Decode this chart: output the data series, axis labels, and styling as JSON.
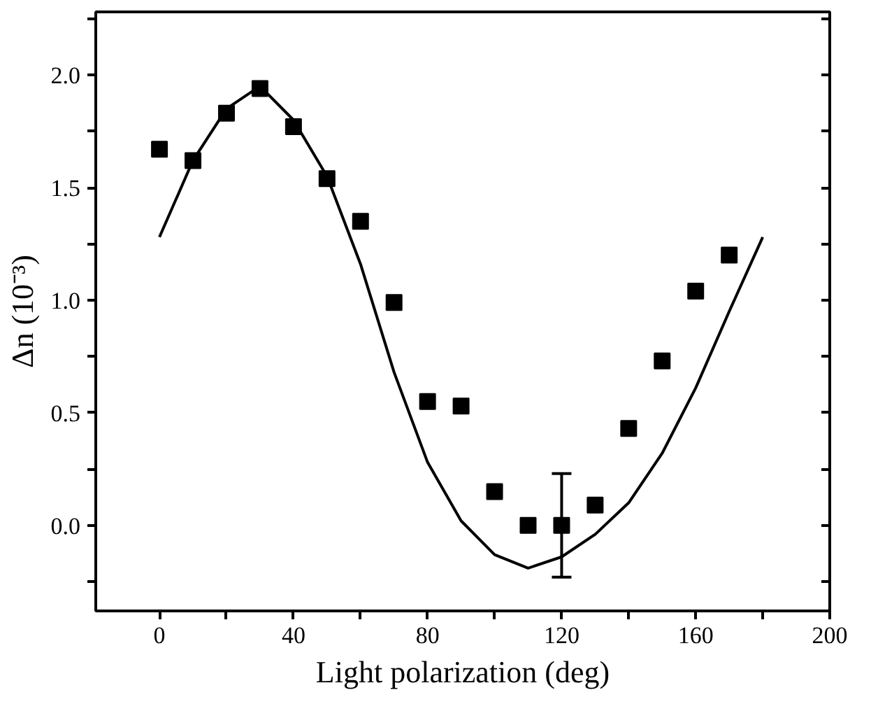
{
  "chart_data": {
    "type": "scatter",
    "xlabel": "Light polarization (deg)",
    "ylabel": "Δn (10⁻³)",
    "x": [
      0,
      10,
      20,
      30,
      40,
      50,
      60,
      70,
      80,
      90,
      100,
      110,
      120,
      130,
      140,
      150,
      160,
      170
    ],
    "series": [
      {
        "color": "#000000",
        "marker": "square",
        "values": [
          1.67,
          1.62,
          1.83,
          1.94,
          1.77,
          1.54,
          1.35,
          0.99,
          0.55,
          0.53,
          0.15,
          0.0,
          0.0,
          0.09,
          0.43,
          0.73,
          1.04,
          1.2
        ],
        "errors": [
          null,
          null,
          null,
          null,
          null,
          null,
          null,
          null,
          null,
          null,
          null,
          null,
          0.23,
          null,
          null,
          null,
          null,
          null
        ]
      },
      {
        "type": "line",
        "color": "#000000",
        "marker": "none",
        "line_style": "solid",
        "x": [
          0,
          10,
          20,
          30,
          40,
          50,
          60,
          70,
          80,
          90,
          100,
          110,
          120,
          130,
          140,
          150,
          160,
          170,
          180
        ],
        "values": [
          1.28,
          1.62,
          1.85,
          1.95,
          1.8,
          1.55,
          1.16,
          0.68,
          0.28,
          0.02,
          -0.13,
          -0.19,
          -0.14,
          -0.04,
          0.1,
          0.32,
          0.61,
          0.95,
          1.28
        ]
      }
    ],
    "xlim": [
      -19,
      200
    ],
    "xticks": [
      0,
      {
        "value": 20,
        "label": null
      },
      40,
      {
        "value": 60,
        "label": null
      },
      80,
      {
        "value": 100,
        "label": null
      },
      120,
      {
        "value": 140,
        "label": null
      },
      160,
      {
        "value": 180,
        "label": null
      },
      200
    ],
    "ylim": [
      -0.38,
      2.28
    ],
    "yticks": [
      {
        "value": -0.25,
        "label": null
      },
      "0.0",
      {
        "value": 0.25,
        "label": null
      },
      0.5,
      {
        "value": 0.75,
        "label": null
      },
      "1.0",
      {
        "value": 1.25,
        "label": null
      },
      1.5,
      {
        "value": 1.75,
        "label": null
      },
      "2.0",
      {
        "value": 2.25,
        "label": null
      }
    ],
    "grid": false
  }
}
